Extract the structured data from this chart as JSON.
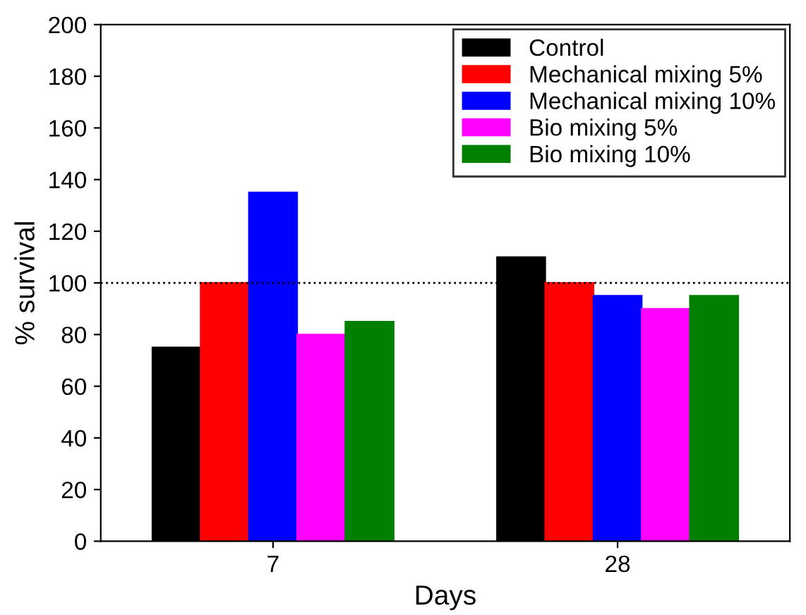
{
  "chart_data": {
    "type": "bar",
    "xlabel": "Days",
    "ylabel": "% survival",
    "categories": [
      "7",
      "28"
    ],
    "series": [
      {
        "name": "Control",
        "color": "#000000",
        "values": [
          75,
          110
        ]
      },
      {
        "name": "Mechanical mixing 5%",
        "color": "#ff0000",
        "values": [
          100,
          100
        ]
      },
      {
        "name": "Mechanical mixing 10%",
        "color": "#0000ff",
        "values": [
          135,
          95
        ]
      },
      {
        "name": "Bio mixing 5%",
        "color": "#ff00ff",
        "values": [
          80,
          90
        ]
      },
      {
        "name": "Bio mixing 10%",
        "color": "#008000",
        "values": [
          85,
          95
        ]
      }
    ],
    "ylim": [
      0,
      200
    ],
    "yticks": [
      0,
      20,
      40,
      60,
      80,
      100,
      120,
      140,
      160,
      180,
      200
    ],
    "ref_lines": [
      {
        "axis": "y",
        "value": 100,
        "label": null,
        "color": "#000000",
        "line_style": "dotted"
      }
    ],
    "legend": "top right",
    "grid": false
  }
}
